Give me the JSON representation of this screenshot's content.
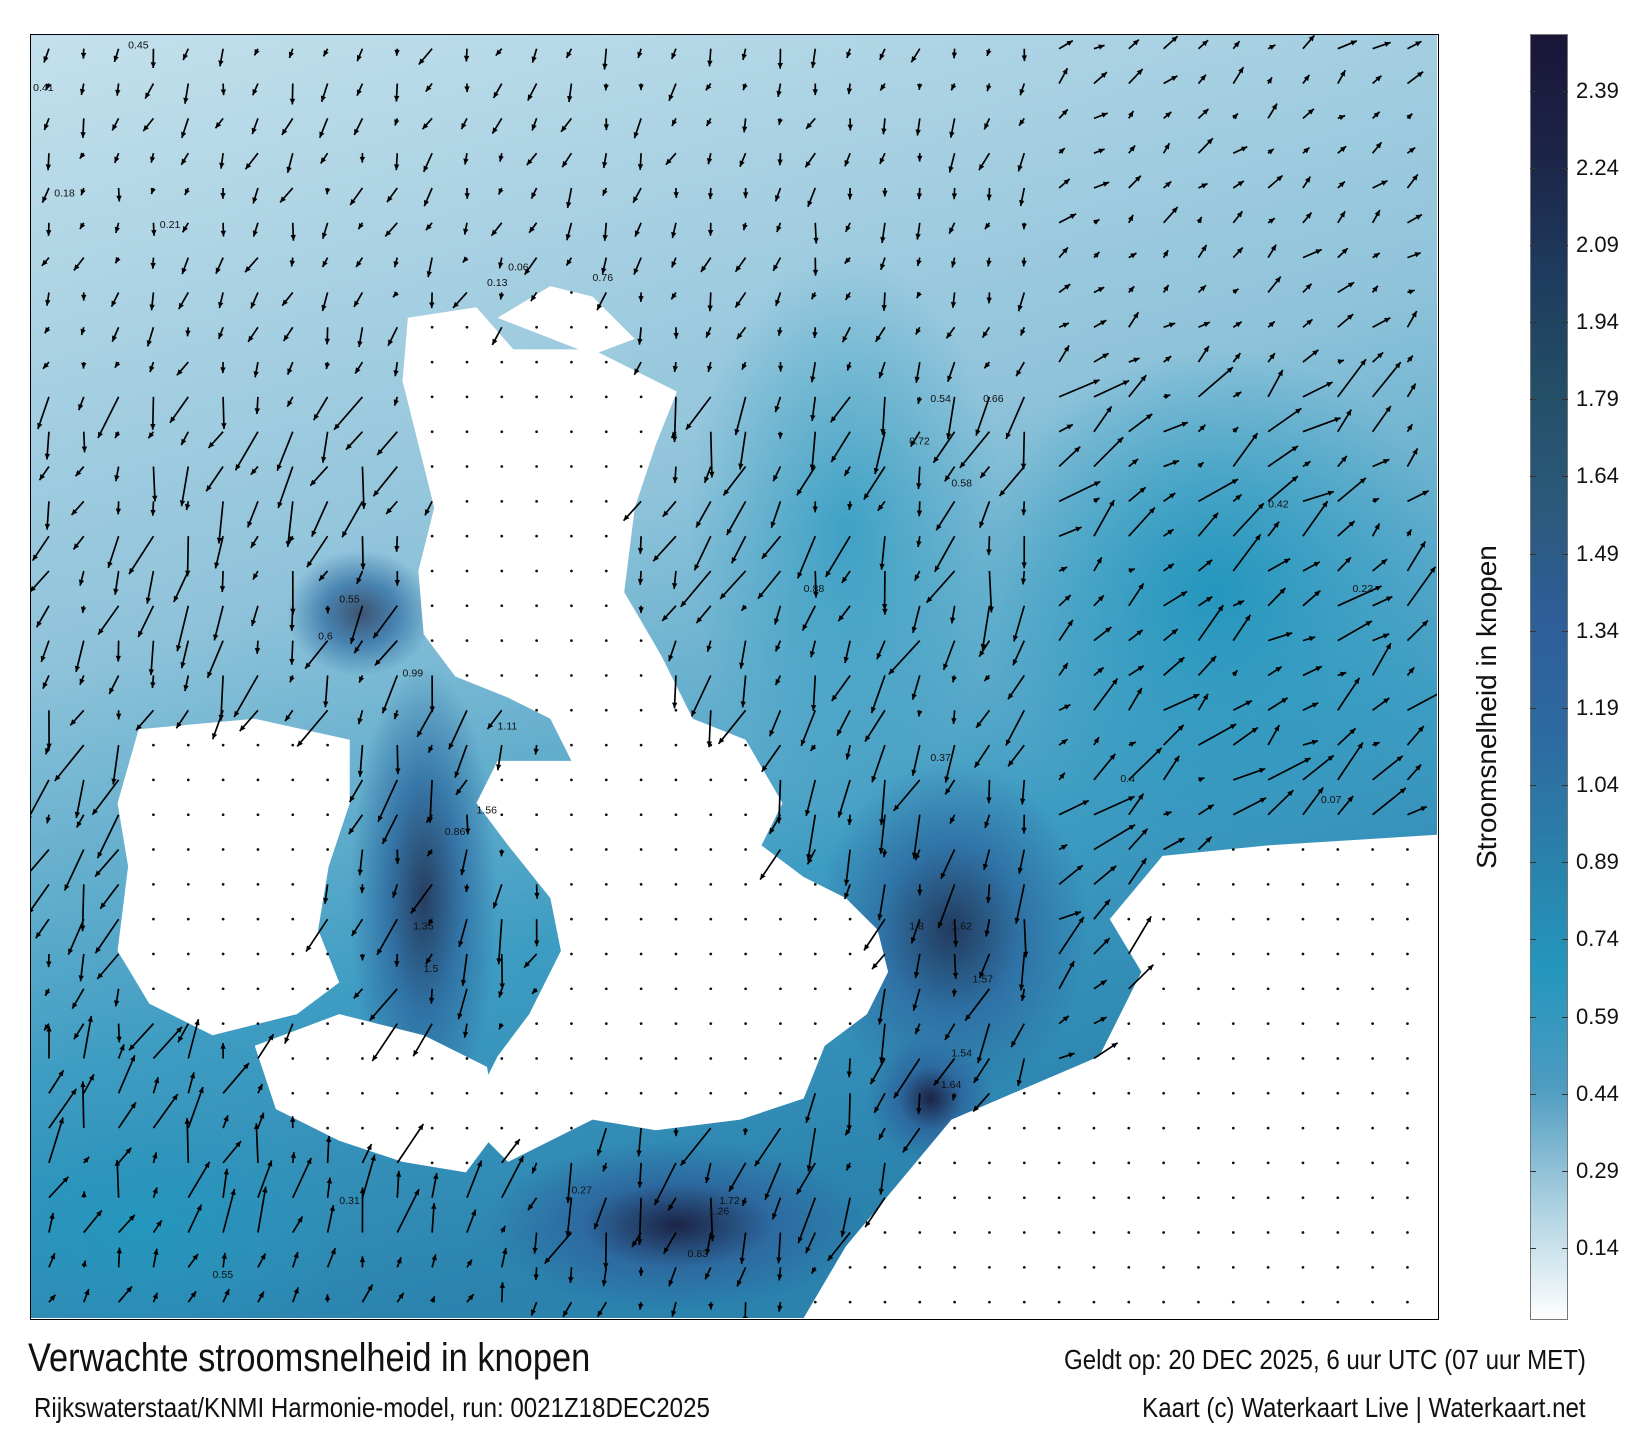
{
  "map": {
    "title": "Verwachte stroomsnelheid in knopen",
    "source": "Rijkswaterstaat/KNMI Harmonie-model, run: 0021Z18DEC2025",
    "valid_time": "Geldt op: 20 DEC 2025, 6 uur UTC (07 uur MET)",
    "credit": "Kaart (c) Waterkaart Live | Waterkaart.net",
    "land_color": "#ffffff",
    "arrow_color": "#000000"
  },
  "colorbar": {
    "label": "Stroomsnelheid in knopen",
    "ticks": [
      "2.39",
      "2.24",
      "2.09",
      "1.94",
      "1.79",
      "1.64",
      "1.49",
      "1.34",
      "1.19",
      "1.04",
      "0.89",
      "0.74",
      "0.59",
      "0.44",
      "0.29",
      "0.14"
    ],
    "range": [
      0,
      2.5
    ],
    "colors": [
      "#ffffff",
      "#a9cfdf",
      "#4d9bc0",
      "#2496bd",
      "#2a80a8",
      "#2d6aa0",
      "#2e5e98",
      "#2a5a7a",
      "#234e66",
      "#1e3a5c",
      "#1c2446",
      "#1a1638"
    ]
  },
  "speed_labels": [
    {
      "text": "0.45"
    },
    {
      "text": "0.41"
    },
    {
      "text": "0.18"
    },
    {
      "text": "0.21"
    },
    {
      "text": "0.13"
    },
    {
      "text": "0.06"
    },
    {
      "text": "0.76"
    },
    {
      "text": "0.55"
    },
    {
      "text": "0.6"
    },
    {
      "text": "0.99"
    },
    {
      "text": "1.11"
    },
    {
      "text": "1.56"
    },
    {
      "text": "0.86"
    },
    {
      "text": "1.35"
    },
    {
      "text": "1.5"
    },
    {
      "text": "1.8"
    },
    {
      "text": "1.62"
    },
    {
      "text": "1.57"
    },
    {
      "text": "1.54"
    },
    {
      "text": "1.64"
    },
    {
      "text": "0.37"
    },
    {
      "text": "0.54"
    },
    {
      "text": "0.66"
    },
    {
      "text": "0.72"
    },
    {
      "text": "0.88"
    },
    {
      "text": "0.58"
    },
    {
      "text": "0.42"
    },
    {
      "text": "0.22"
    },
    {
      "text": "0.07"
    },
    {
      "text": "0.4"
    },
    {
      "text": "1.72"
    },
    {
      "text": "1.26"
    },
    {
      "text": "0.83"
    },
    {
      "text": "0.27"
    },
    {
      "text": "0.31"
    },
    {
      "text": "0.55"
    }
  ]
}
